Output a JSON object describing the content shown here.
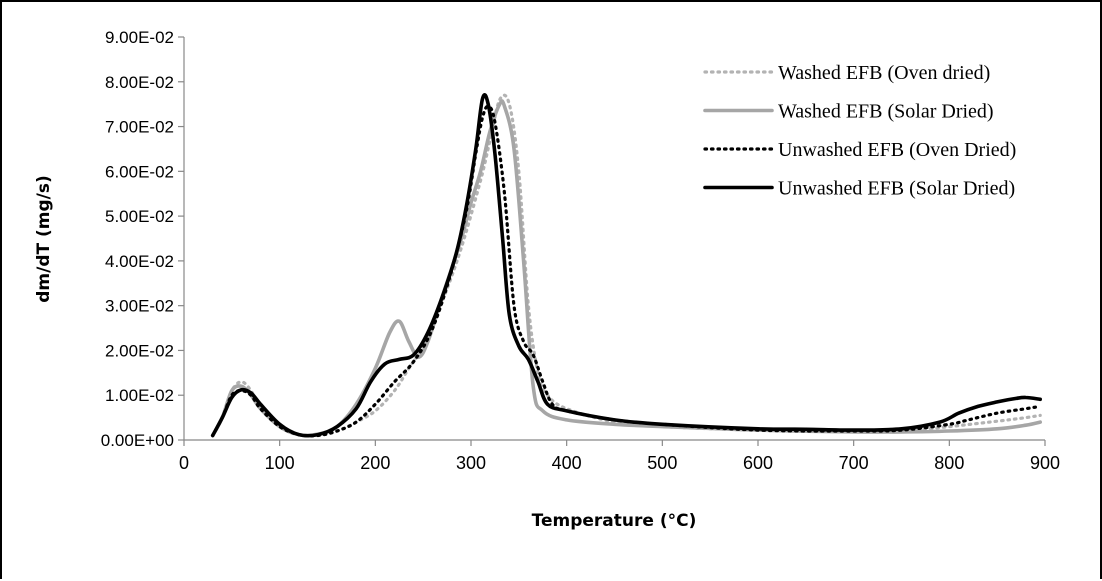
{
  "chart_data": {
    "type": "line",
    "xlabel": "Temperature (°C)",
    "ylabel": "dm/dT (mg/s)",
    "xlim": [
      0,
      900
    ],
    "ylim": [
      0,
      0.09
    ],
    "x_ticks": [
      "0",
      "100",
      "200",
      "300",
      "400",
      "500",
      "600",
      "700",
      "800",
      "900"
    ],
    "y_ticks": [
      "0.00E+00",
      "1.00E-02",
      "2.00E-02",
      "3.00E-02",
      "4.00E-02",
      "5.00E-02",
      "6.00E-02",
      "7.00E-02",
      "8.00E-02",
      "9.00E-02"
    ],
    "grid": false,
    "legend_position": "top-right",
    "series": [
      {
        "name": "Washed EFB (Oven dried)",
        "color": "#b3b3b3",
        "style": "dotted",
        "points": [
          [
            30,
            0.001
          ],
          [
            40,
            0.005
          ],
          [
            50,
            0.011
          ],
          [
            60,
            0.013
          ],
          [
            70,
            0.011
          ],
          [
            80,
            0.007
          ],
          [
            100,
            0.003
          ],
          [
            120,
            0.0012
          ],
          [
            140,
            0.0012
          ],
          [
            160,
            0.002
          ],
          [
            180,
            0.004
          ],
          [
            200,
            0.0065
          ],
          [
            220,
            0.011
          ],
          [
            235,
            0.016
          ],
          [
            250,
            0.021
          ],
          [
            270,
            0.031
          ],
          [
            290,
            0.043
          ],
          [
            310,
            0.058
          ],
          [
            320,
            0.067
          ],
          [
            330,
            0.076
          ],
          [
            340,
            0.075
          ],
          [
            350,
            0.06
          ],
          [
            360,
            0.03
          ],
          [
            370,
            0.015
          ],
          [
            380,
            0.01
          ],
          [
            400,
            0.007
          ],
          [
            450,
            0.004
          ],
          [
            500,
            0.003
          ],
          [
            600,
            0.0022
          ],
          [
            700,
            0.002
          ],
          [
            750,
            0.002
          ],
          [
            800,
            0.003
          ],
          [
            850,
            0.0042
          ],
          [
            880,
            0.005
          ],
          [
            895,
            0.0055
          ]
        ]
      },
      {
        "name": "Washed EFB (Solar Dried)",
        "color": "#a6a6a6",
        "style": "solid",
        "points": [
          [
            30,
            0.001
          ],
          [
            40,
            0.005
          ],
          [
            50,
            0.011
          ],
          [
            60,
            0.012
          ],
          [
            70,
            0.01
          ],
          [
            80,
            0.007
          ],
          [
            100,
            0.003
          ],
          [
            120,
            0.0012
          ],
          [
            140,
            0.0013
          ],
          [
            160,
            0.003
          ],
          [
            180,
            0.008
          ],
          [
            200,
            0.016
          ],
          [
            215,
            0.024
          ],
          [
            225,
            0.0265
          ],
          [
            235,
            0.022
          ],
          [
            245,
            0.0185
          ],
          [
            255,
            0.022
          ],
          [
            270,
            0.032
          ],
          [
            290,
            0.045
          ],
          [
            300,
            0.053
          ],
          [
            310,
            0.06
          ],
          [
            320,
            0.069
          ],
          [
            330,
            0.075
          ],
          [
            335,
            0.0745
          ],
          [
            345,
            0.065
          ],
          [
            355,
            0.04
          ],
          [
            365,
            0.012
          ],
          [
            375,
            0.0065
          ],
          [
            400,
            0.0045
          ],
          [
            450,
            0.0035
          ],
          [
            500,
            0.003
          ],
          [
            600,
            0.0022
          ],
          [
            700,
            0.0018
          ],
          [
            750,
            0.0018
          ],
          [
            800,
            0.002
          ],
          [
            850,
            0.0025
          ],
          [
            880,
            0.0033
          ],
          [
            895,
            0.004
          ]
        ]
      },
      {
        "name": "Unwashed EFB (Oven Dried)",
        "color": "#000000",
        "style": "dotted",
        "points": [
          [
            30,
            0.001
          ],
          [
            40,
            0.005
          ],
          [
            50,
            0.01
          ],
          [
            60,
            0.011
          ],
          [
            70,
            0.01
          ],
          [
            80,
            0.007
          ],
          [
            100,
            0.003
          ],
          [
            120,
            0.0012
          ],
          [
            140,
            0.001
          ],
          [
            160,
            0.002
          ],
          [
            180,
            0.004
          ],
          [
            200,
            0.008
          ],
          [
            220,
            0.013
          ],
          [
            240,
            0.0175
          ],
          [
            260,
            0.025
          ],
          [
            280,
            0.038
          ],
          [
            295,
            0.051
          ],
          [
            305,
            0.064
          ],
          [
            312,
            0.072
          ],
          [
            318,
            0.0745
          ],
          [
            325,
            0.071
          ],
          [
            335,
            0.055
          ],
          [
            345,
            0.03
          ],
          [
            355,
            0.022
          ],
          [
            365,
            0.019
          ],
          [
            375,
            0.013
          ],
          [
            385,
            0.008
          ],
          [
            400,
            0.0065
          ],
          [
            450,
            0.0045
          ],
          [
            500,
            0.0035
          ],
          [
            600,
            0.0022
          ],
          [
            700,
            0.002
          ],
          [
            750,
            0.0022
          ],
          [
            800,
            0.0035
          ],
          [
            820,
            0.0045
          ],
          [
            850,
            0.006
          ],
          [
            880,
            0.007
          ],
          [
            895,
            0.0075
          ]
        ]
      },
      {
        "name": "Unwashed EFB (Solar Dried)",
        "color": "#000000",
        "style": "solid",
        "points": [
          [
            30,
            0.001
          ],
          [
            40,
            0.005
          ],
          [
            50,
            0.0095
          ],
          [
            60,
            0.0112
          ],
          [
            70,
            0.0105
          ],
          [
            80,
            0.008
          ],
          [
            100,
            0.0035
          ],
          [
            120,
            0.0012
          ],
          [
            140,
            0.0012
          ],
          [
            160,
            0.003
          ],
          [
            180,
            0.007
          ],
          [
            195,
            0.013
          ],
          [
            210,
            0.017
          ],
          [
            225,
            0.018
          ],
          [
            240,
            0.019
          ],
          [
            255,
            0.024
          ],
          [
            270,
            0.032
          ],
          [
            285,
            0.042
          ],
          [
            295,
            0.052
          ],
          [
            305,
            0.065
          ],
          [
            312,
            0.0762
          ],
          [
            318,
            0.075
          ],
          [
            325,
            0.064
          ],
          [
            333,
            0.045
          ],
          [
            340,
            0.028
          ],
          [
            350,
            0.021
          ],
          [
            360,
            0.018
          ],
          [
            370,
            0.013
          ],
          [
            380,
            0.008
          ],
          [
            400,
            0.0065
          ],
          [
            450,
            0.0045
          ],
          [
            500,
            0.0035
          ],
          [
            600,
            0.0025
          ],
          [
            650,
            0.0024
          ],
          [
            700,
            0.0022
          ],
          [
            750,
            0.0025
          ],
          [
            790,
            0.004
          ],
          [
            810,
            0.006
          ],
          [
            830,
            0.0075
          ],
          [
            850,
            0.0085
          ],
          [
            870,
            0.0093
          ],
          [
            880,
            0.0095
          ],
          [
            895,
            0.0091
          ]
        ]
      }
    ]
  }
}
